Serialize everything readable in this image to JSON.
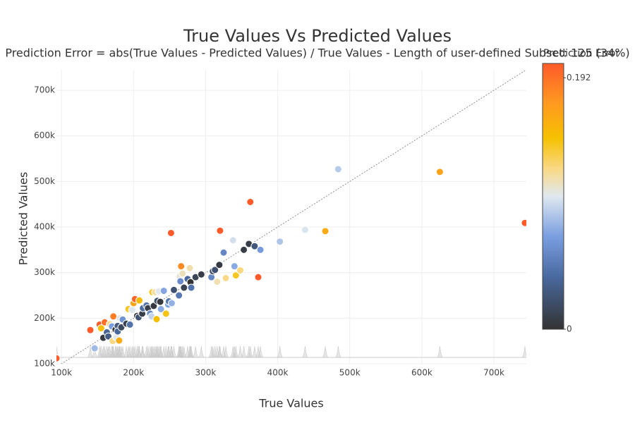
{
  "chart_data": {
    "type": "scatter",
    "title": "True Values Vs Predicted Values",
    "subtitle": "Prediction Error = abs(True Values - Predicted Values) / True Values - Length of user-defined Subset: 125 (34%)",
    "xlabel": "True Values",
    "ylabel": "Predicted Values",
    "colorbar_title": "Prediction Error",
    "x": [
      93000,
      140000,
      146000,
      153000,
      155000,
      158000,
      160000,
      163000,
      165000,
      167000,
      170000,
      171000,
      172000,
      175000,
      176000,
      178000,
      178000,
      180000,
      181000,
      183000,
      185000,
      190000,
      193000,
      195000,
      198000,
      200000,
      202000,
      205000,
      207000,
      208000,
      212000,
      213000,
      218000,
      220000,
      223000,
      225000,
      226000,
      228000,
      230000,
      232000,
      233000,
      235000,
      237000,
      238000,
      242000,
      245000,
      248000,
      249000,
      252000,
      253000,
      256000,
      263000,
      264000,
      265000,
      266000,
      268000,
      270000,
      275000,
      278000,
      279000,
      280000,
      286000,
      294000,
      308000,
      310000,
      313000,
      316000,
      319000,
      320000,
      325000,
      328000,
      338000,
      340000,
      342000,
      348000,
      353000,
      360000,
      362000,
      368000,
      373000,
      376000,
      403000,
      438000,
      466000,
      484000,
      625000,
      743000
    ],
    "values": [
      112000,
      174000,
      134000,
      186000,
      178000,
      157000,
      191000,
      169000,
      160000,
      187000,
      182000,
      150000,
      204000,
      175000,
      158000,
      183000,
      171000,
      151000,
      200000,
      180000,
      197000,
      188000,
      220000,
      186000,
      218000,
      233000,
      242000,
      205000,
      202000,
      239000,
      210000,
      222000,
      228000,
      222000,
      210000,
      204000,
      257000,
      227000,
      257000,
      198000,
      238000,
      259000,
      236000,
      220000,
      260000,
      210000,
      230000,
      237000,
      387000,
      233000,
      262000,
      250000,
      292000,
      281000,
      314000,
      298000,
      267000,
      286000,
      310000,
      279000,
      267000,
      290000,
      296000,
      290000,
      303000,
      306000,
      280000,
      317000,
      392000,
      344000,
      288000,
      371000,
      314000,
      294000,
      305000,
      350000,
      363000,
      455000,
      358000,
      290000,
      350000,
      368000,
      394000,
      391000,
      527000,
      521000,
      409000
    ],
    "color_values": [
      0.204,
      0.243,
      0.082,
      0.216,
      0.148,
      0.006,
      0.194,
      0.037,
      0.03,
      0.12,
      0.071,
      0.123,
      0.186,
      0.0,
      0.102,
      0.028,
      0.039,
      0.161,
      0.105,
      0.016,
      0.065,
      0.011,
      0.14,
      0.046,
      0.101,
      0.165,
      0.198,
      0.0,
      0.024,
      0.149,
      0.009,
      0.042,
      0.046,
      0.009,
      0.058,
      0.093,
      0.137,
      0.004,
      0.117,
      0.147,
      0.021,
      0.102,
      0.004,
      0.076,
      0.074,
      0.143,
      0.073,
      0.048,
      0.536,
      0.079,
      0.023,
      0.049,
      0.106,
      0.06,
      0.18,
      0.112,
      0.011,
      0.04,
      0.115,
      0.0,
      0.046,
      0.014,
      0.007,
      0.058,
      0.023,
      0.022,
      0.114,
      0.006,
      0.225,
      0.058,
      0.122,
      0.098,
      0.076,
      0.14,
      0.124,
      0.008,
      0.008,
      0.257,
      0.027,
      0.223,
      0.069,
      0.087,
      0.1,
      0.161,
      0.089,
      0.166,
      0.451
    ],
    "colorscale": [
      [
        0,
        "#333333"
      ],
      [
        0.2,
        "#4a6aa0"
      ],
      [
        0.35,
        "#7a9ee0"
      ],
      [
        0.5,
        "#dfe8ef"
      ],
      [
        0.6,
        "#f9d98a"
      ],
      [
        0.72,
        "#f5c000"
      ],
      [
        0.85,
        "#ff9a20"
      ],
      [
        1,
        "#ff5a2a"
      ]
    ],
    "clim": [
      0,
      0.203
    ],
    "cticks": [
      0,
      0.192
    ],
    "xlim": [
      93000,
      745000
    ],
    "ylim": [
      100000,
      745000
    ],
    "xticks": [
      {
        "value": 100000,
        "label": "100k"
      },
      {
        "value": 200000,
        "label": "200k"
      },
      {
        "value": 300000,
        "label": "300k"
      },
      {
        "value": 400000,
        "label": "400k"
      },
      {
        "value": 500000,
        "label": "500k"
      },
      {
        "value": 600000,
        "label": "600k"
      },
      {
        "value": 700000,
        "label": "700k"
      }
    ],
    "yticks": [
      {
        "value": 100000,
        "label": "100k"
      },
      {
        "value": 200000,
        "label": "200k"
      },
      {
        "value": 300000,
        "label": "300k"
      },
      {
        "value": 400000,
        "label": "400k"
      },
      {
        "value": 500000,
        "label": "500k"
      },
      {
        "value": 600000,
        "label": "600k"
      },
      {
        "value": 700000,
        "label": "700k"
      }
    ],
    "grid": true
  }
}
